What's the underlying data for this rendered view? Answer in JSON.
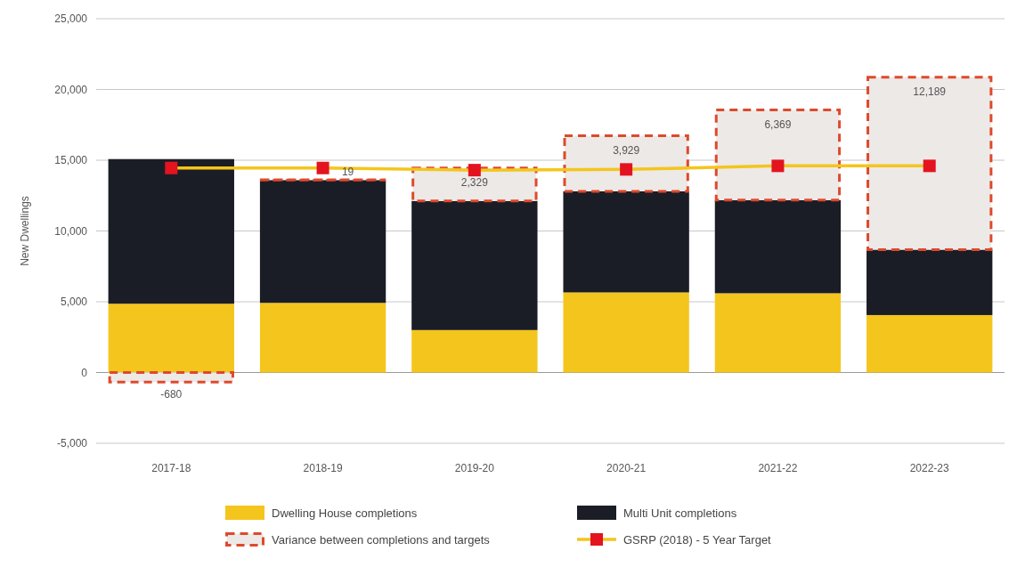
{
  "chart_data": {
    "type": "bar",
    "ylabel": "New Dwellings",
    "categories": [
      "2017-18",
      "2018-19",
      "2019-20",
      "2020-21",
      "2021-22",
      "2022-23"
    ],
    "stacked": true,
    "ylim": [
      -5000,
      25000
    ],
    "yticks": [
      {
        "value": -5000,
        "label": "-5,000"
      },
      0,
      {
        "value": 5000,
        "label": "5,000"
      },
      {
        "value": 10000,
        "label": "10,000"
      },
      {
        "value": 15000,
        "label": "15,000"
      },
      {
        "value": 20000,
        "label": "20,000"
      },
      {
        "value": 25000,
        "label": "25,000"
      }
    ],
    "grid": "y",
    "legend": "bottom",
    "series": [
      {
        "name": "Dwelling House completions",
        "color": "#f4c51c",
        "values": [
          4860,
          4920,
          3000,
          5660,
          5600,
          4060
        ]
      },
      {
        "name": "Multi Unit completions",
        "color": "#1b1d26",
        "values": [
          10220,
          8680,
          9120,
          7140,
          6580,
          4620
        ]
      },
      {
        "name": "Variance between completions and targets",
        "color": "#dd4a2c",
        "line_style": "dashed",
        "values": [
          -680,
          19,
          2329,
          3929,
          6369,
          12189
        ],
        "value_labels": [
          "-680",
          "19",
          "2,329",
          "3,929",
          "6,369",
          "12,189"
        ]
      },
      {
        "name": "GSRP (2018) - 5 Year Target",
        "type": "line",
        "color": "#f4c51c",
        "marker": "square",
        "colors": [
          "#e3141f",
          "#e3141f",
          "#e3141f",
          "#e3141f",
          "#e3141f",
          "#e3141f"
        ],
        "values": [
          14450,
          14450,
          14300,
          14350,
          14600,
          14600
        ]
      }
    ]
  }
}
